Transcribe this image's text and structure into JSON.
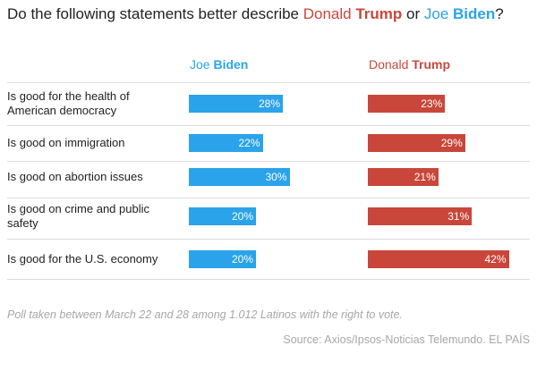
{
  "title": {
    "prefix": "Do the following statements better describe ",
    "trump_first": "Donald ",
    "trump_last": "Trump",
    "middle": " or ",
    "biden_first": "Joe ",
    "biden_last": "Biden",
    "suffix": "?"
  },
  "colors": {
    "biden": "#2aa3ea",
    "trump": "#c8473a"
  },
  "chart_data": {
    "type": "bar",
    "categories": [
      "Is good for the health of American democracy",
      "Is good on immigration",
      "Is good on abortion issues",
      "Is good on crime and public safety",
      "Is good for the U.S. economy"
    ],
    "series": [
      {
        "name": "Joe Biden",
        "values": [
          28,
          22,
          30,
          20,
          20
        ],
        "labels": [
          "28%",
          "22%",
          "30%",
          "20%",
          "20%"
        ]
      },
      {
        "name": "Donald Trump",
        "values": [
          23,
          29,
          21,
          31,
          42
        ],
        "labels": [
          "23%",
          "29%",
          "21%",
          "31%",
          "42%"
        ]
      }
    ],
    "unit": "%",
    "xlim": [
      0,
      100
    ]
  },
  "note": "Poll taken between March 22 and 28 among 1.012 Latinos with the right to vote.",
  "source": "Source: Axios/Ipsos-Noticias Telemundo. EL PAÍS"
}
